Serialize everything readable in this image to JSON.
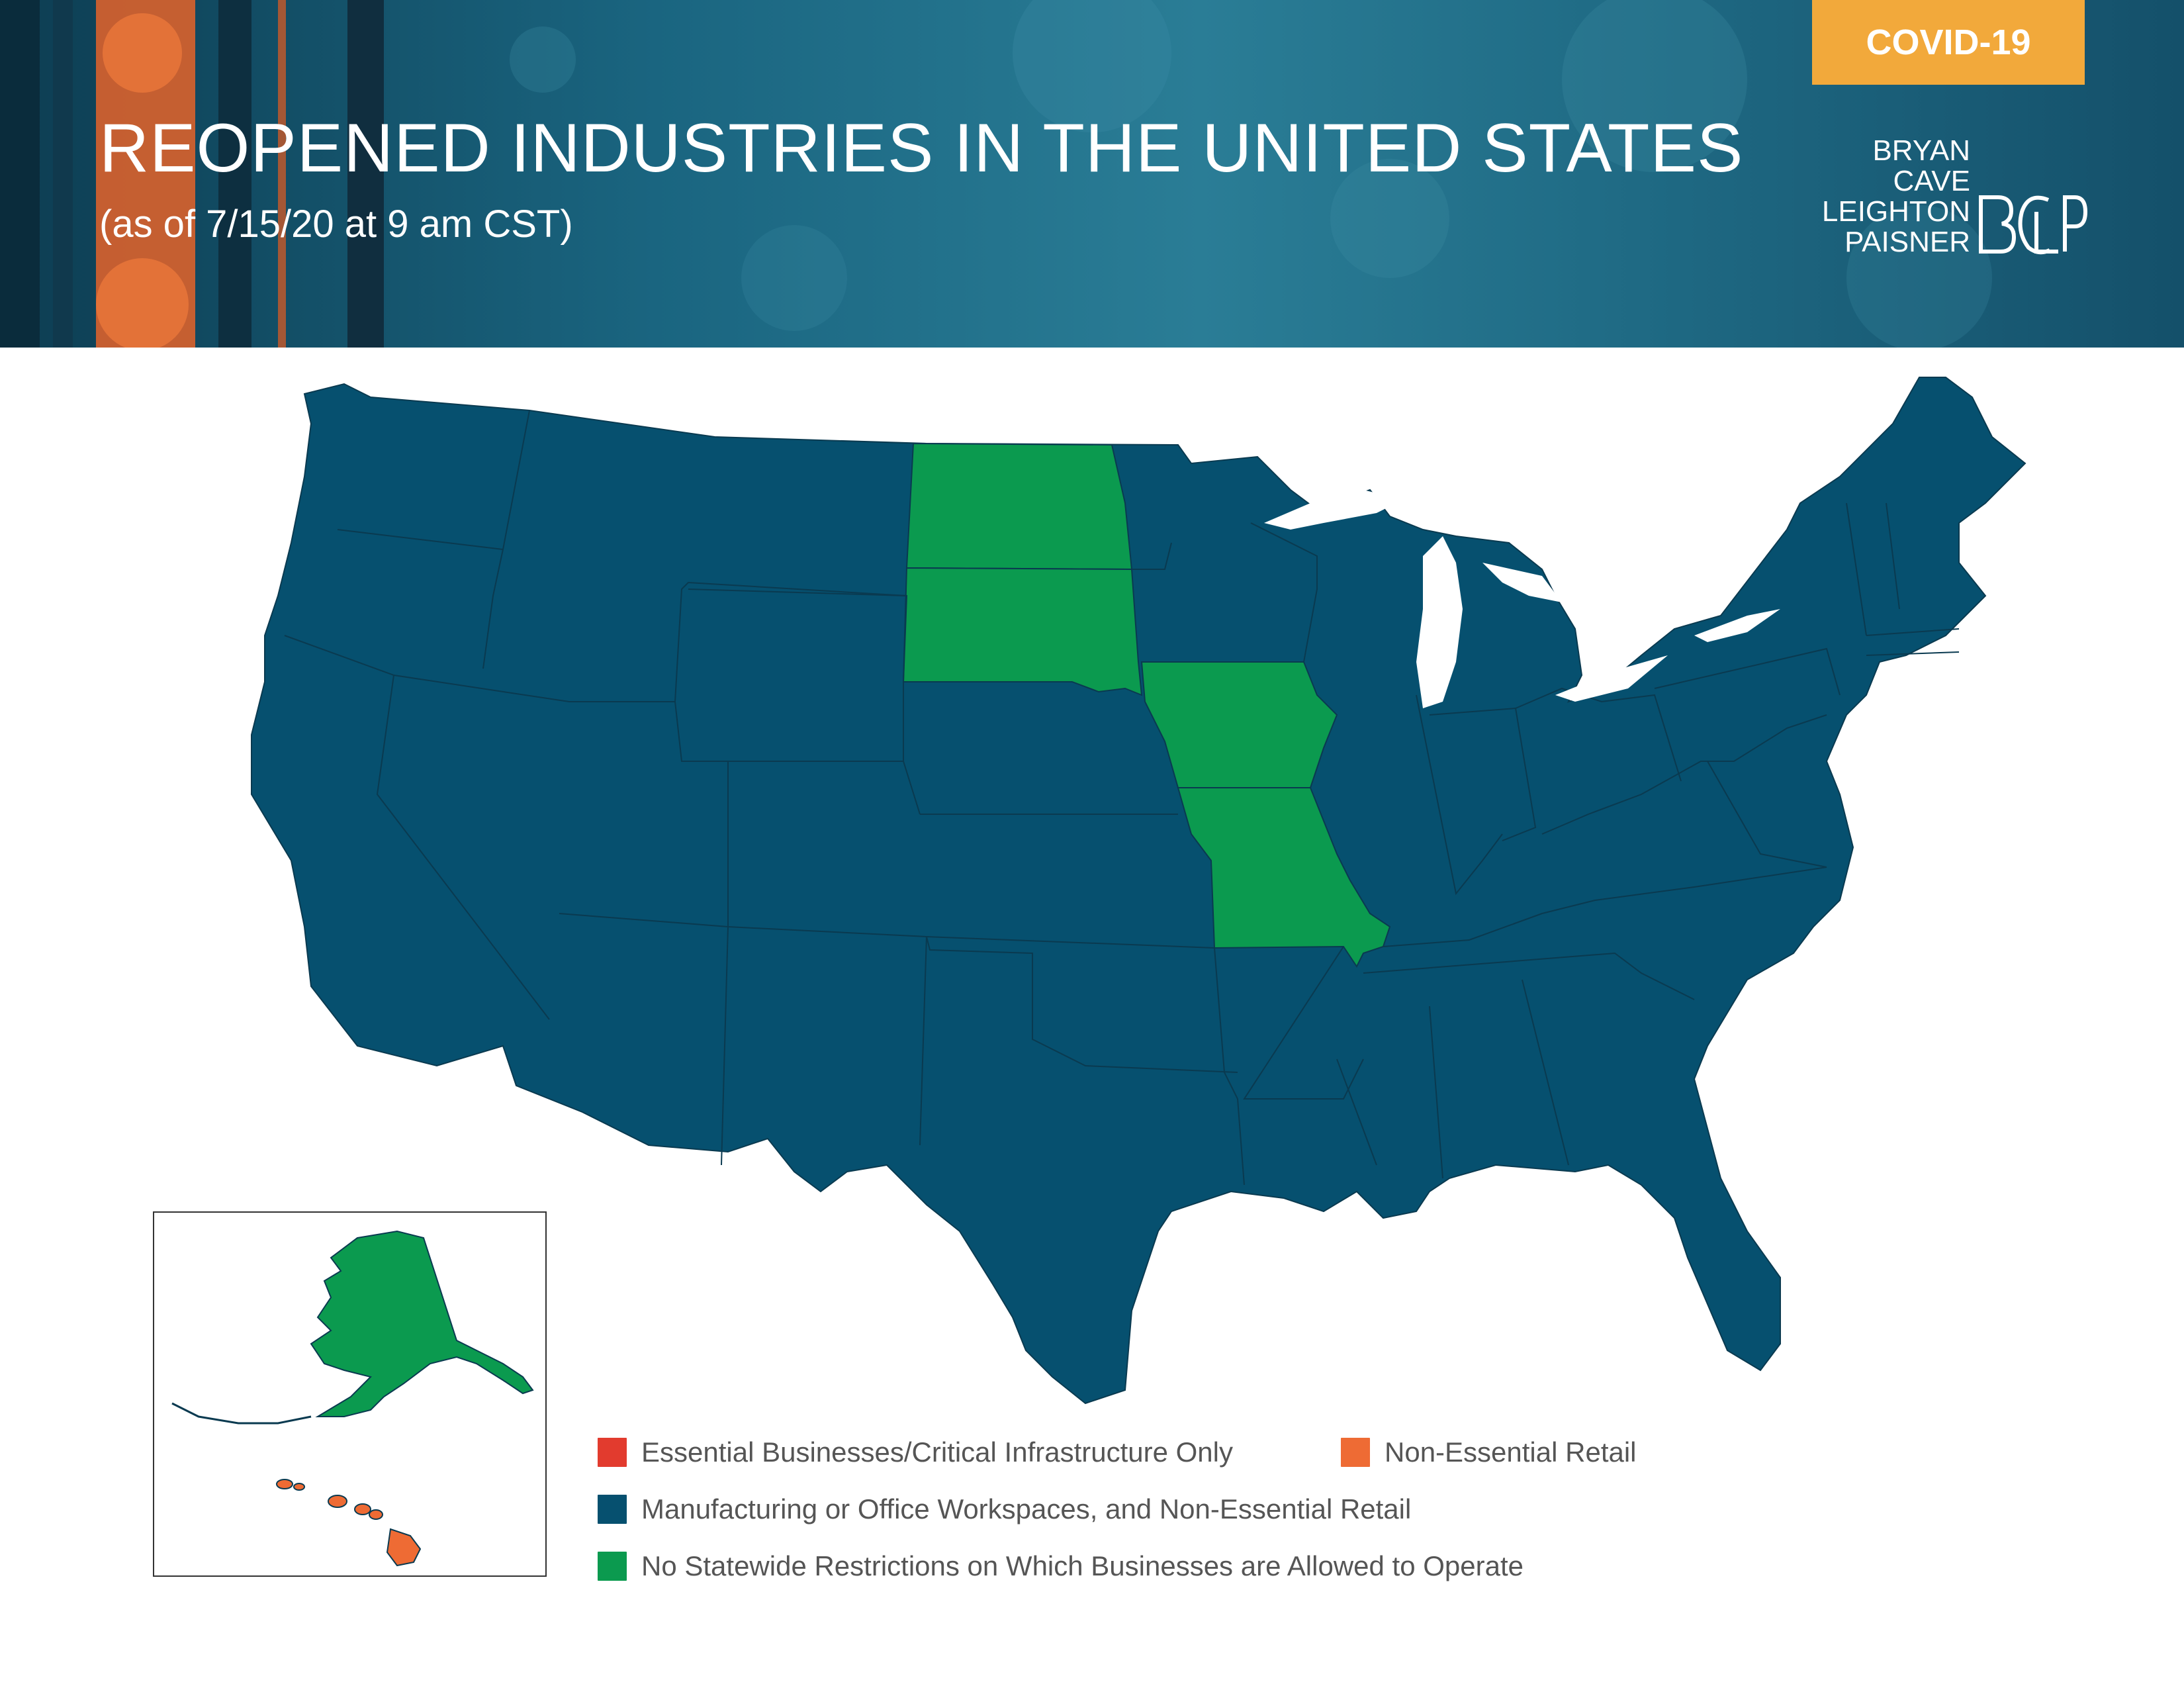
{
  "header": {
    "title": "REOPENED INDUSTRIES IN THE UNITED STATES",
    "subtitle": "(as of 7/15/20 at 9 am CST)",
    "badge": "COVID-19",
    "logo_lines": [
      "BRYAN",
      "CAVE",
      "LEIGHTON",
      "PAISNER"
    ],
    "logo_mark": "BCLP"
  },
  "colors": {
    "essential_only": "#e23b2e",
    "non_essential_retail": "#ee6b34",
    "manufacturing_office_retail": "#06506f",
    "no_restrictions": "#0b9a4f",
    "header_accent": "#f2a93b",
    "state_border": "#0a3a50"
  },
  "legend": {
    "essential_only": "Essential Businesses/Critical Infrastructure Only",
    "non_essential_retail": "Non-Essential Retail",
    "manufacturing_office_retail": "Manufacturing or Office Workspaces, and Non-Essential Retail",
    "no_restrictions": "No Statewide Restrictions on Which Businesses are Allowed to Operate"
  },
  "state_status": {
    "north_dakota": "no_restrictions",
    "south_dakota": "no_restrictions",
    "iowa": "no_restrictions",
    "missouri": "no_restrictions",
    "alaska": "no_restrictions",
    "hawaii": "non_essential_retail",
    "all_other_contiguous_states": "manufacturing_office_retail"
  }
}
